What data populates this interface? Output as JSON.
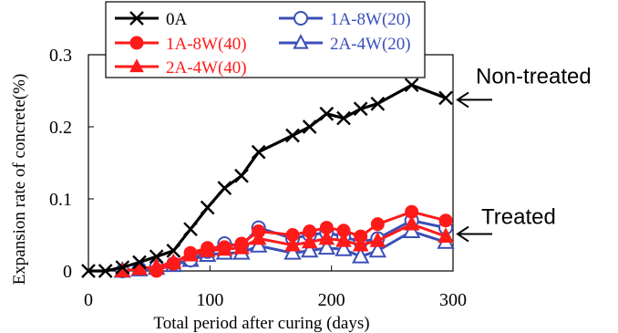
{
  "chart_data": {
    "type": "line",
    "xlabel": "Total period after curing (days)",
    "ylabel": "Expansion rate of concrete(%)",
    "xlim": [
      0,
      300
    ],
    "ylim": [
      0,
      0.3
    ],
    "xticks": [
      0,
      100,
      200,
      300
    ],
    "yticks": [
      0,
      0.1,
      0.2,
      0.3
    ],
    "xtick_labels": [
      "0",
      "100",
      "200",
      "300"
    ],
    "ytick_labels": [
      "0",
      "0.1",
      "0.2",
      "0.3"
    ],
    "grid": false,
    "legend_position": "top-inside",
    "series": [
      {
        "name": "0A",
        "color": "#000000",
        "marker": "x",
        "x": [
          0,
          14,
          28,
          42,
          56,
          70,
          84,
          98,
          112,
          126,
          140,
          168,
          182,
          196,
          210,
          224,
          238,
          266,
          294
        ],
        "y": [
          0,
          0,
          0.005,
          0.012,
          0.02,
          0.028,
          0.058,
          0.088,
          0.115,
          0.132,
          0.165,
          0.188,
          0.2,
          0.218,
          0.212,
          0.225,
          0.232,
          0.258,
          0.24
        ]
      },
      {
        "name": "1A-8W(40)",
        "color": "#ff1a1a",
        "marker": "circle",
        "x": [
          56,
          70,
          84,
          98,
          112,
          126,
          140,
          168,
          182,
          196,
          210,
          224,
          238,
          266,
          294
        ],
        "y": [
          0,
          0.01,
          0.025,
          0.032,
          0.033,
          0.038,
          0.055,
          0.05,
          0.055,
          0.06,
          0.056,
          0.048,
          0.065,
          0.082,
          0.07
        ]
      },
      {
        "name": "2A-4W(40)",
        "color": "#ff1a1a",
        "marker": "triangle",
        "x": [
          28,
          42,
          56,
          70,
          84,
          98,
          112,
          126,
          140,
          168,
          182,
          196,
          210,
          224,
          238,
          266,
          294
        ],
        "y": [
          0,
          0.003,
          0.006,
          0.012,
          0.022,
          0.028,
          0.03,
          0.032,
          0.045,
          0.036,
          0.04,
          0.045,
          0.042,
          0.036,
          0.042,
          0.065,
          0.048
        ]
      },
      {
        "name": "1A-8W(20)",
        "color": "#3b4fb8",
        "marker": "circle-open",
        "x": [
          28,
          42,
          56,
          70,
          84,
          98,
          112,
          126,
          140,
          168,
          182,
          196,
          210,
          224,
          238,
          266,
          294
        ],
        "y": [
          0,
          0.003,
          0.006,
          0.01,
          0.015,
          0.027,
          0.038,
          0.035,
          0.06,
          0.045,
          0.05,
          0.053,
          0.048,
          0.04,
          0.045,
          0.07,
          0.06
        ]
      },
      {
        "name": "2A-4W(20)",
        "color": "#3b4fb8",
        "marker": "triangle-open",
        "x": [
          28,
          42,
          56,
          70,
          84,
          98,
          112,
          126,
          140,
          168,
          182,
          196,
          210,
          224,
          238,
          266,
          294
        ],
        "y": [
          0,
          0.002,
          0.004,
          0.008,
          0.015,
          0.022,
          0.025,
          0.025,
          0.035,
          0.025,
          0.028,
          0.032,
          0.03,
          0.02,
          0.028,
          0.055,
          0.04
        ]
      }
    ],
    "annotations": [
      {
        "text": "Non-treated",
        "x": 300,
        "y": 0.24
      },
      {
        "text": "Treated",
        "x": 300,
        "y": 0.055
      }
    ]
  }
}
